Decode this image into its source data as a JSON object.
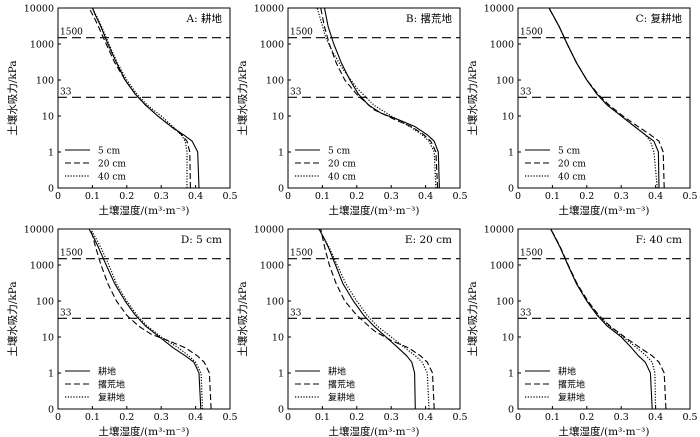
{
  "figure": {
    "xlabel": "土壤湿度/(m³·m⁻³)",
    "ylabel": "土壤水吸力/kPa",
    "ref_lines": [
      {
        "value": 1500,
        "label": "1500"
      },
      {
        "value": 33,
        "label": "33"
      }
    ]
  },
  "chart_data": [
    {
      "type": "line",
      "panel_title": "A: 耕地",
      "xlim": [
        0,
        0.5
      ],
      "xticks": [
        "0",
        "0.1",
        "0.2",
        "0.3",
        "0.4",
        "0.5"
      ],
      "ylim": [
        0,
        10000
      ],
      "yscale": "log",
      "yticks": [
        "0",
        "1",
        "10",
        "100",
        "1000",
        "10000"
      ],
      "legend_position": "lower-left",
      "series": [
        {
          "name": "5 cm",
          "style": "solid",
          "x": [
            0.41,
            0.406,
            0.39,
            0.365,
            0.33,
            0.29,
            0.255,
            0.225,
            0.195,
            0.17,
            0.145,
            0.125,
            0.11,
            0.1,
            0.09
          ],
          "y": [
            0,
            1,
            2,
            3,
            5,
            10,
            20,
            40,
            100,
            300,
            1000,
            3000,
            6000,
            10000,
            10000
          ]
        },
        {
          "name": "20 cm",
          "style": "dashed",
          "x": [
            0.385,
            0.383,
            0.375,
            0.36,
            0.33,
            0.29,
            0.255,
            0.225,
            0.195,
            0.165,
            0.14,
            0.118,
            0.103,
            0.09
          ],
          "y": [
            0,
            1,
            2,
            3,
            5,
            10,
            20,
            40,
            100,
            300,
            1000,
            3000,
            6000,
            10000
          ]
        },
        {
          "name": "40 cm",
          "style": "dotted",
          "x": [
            0.375,
            0.375,
            0.37,
            0.358,
            0.335,
            0.3,
            0.26,
            0.23,
            0.2,
            0.172,
            0.148,
            0.127,
            0.112,
            0.1
          ],
          "y": [
            0,
            1,
            2,
            3,
            5,
            10,
            20,
            40,
            100,
            300,
            1000,
            3000,
            6000,
            10000
          ]
        }
      ]
    },
    {
      "type": "line",
      "panel_title": "B: 撂荒地",
      "xlim": [
        0,
        0.5
      ],
      "xticks": [
        "0",
        "0.1",
        "0.2",
        "0.3",
        "0.4",
        "0.5"
      ],
      "ylim": [
        0,
        10000
      ],
      "yscale": "log",
      "yticks": [
        "0",
        "1",
        "10",
        "100",
        "1000",
        "10000"
      ],
      "legend_position": "lower-left",
      "series": [
        {
          "name": "5 cm",
          "style": "solid",
          "x": [
            0.44,
            0.437,
            0.425,
            0.405,
            0.37,
            0.32,
            0.27,
            0.235,
            0.205,
            0.18,
            0.155,
            0.133,
            0.117,
            0.106
          ],
          "y": [
            0,
            1,
            2,
            3,
            5,
            8,
            12,
            20,
            40,
            100,
            300,
            1000,
            3000,
            10000
          ]
        },
        {
          "name": "20 cm",
          "style": "dashed",
          "x": [
            0.435,
            0.43,
            0.415,
            0.395,
            0.36,
            0.31,
            0.25,
            0.2,
            0.165,
            0.14,
            0.12,
            0.106,
            0.095
          ],
          "y": [
            0,
            1,
            2,
            3,
            5,
            8,
            15,
            40,
            100,
            300,
            1000,
            3000,
            10000
          ]
        },
        {
          "name": "40 cm",
          "style": "dotted",
          "x": [
            0.43,
            0.425,
            0.41,
            0.39,
            0.355,
            0.3,
            0.25,
            0.2,
            0.16,
            0.13,
            0.11,
            0.097,
            0.085
          ],
          "y": [
            0,
            1,
            2,
            3,
            5,
            10,
            20,
            60,
            200,
            600,
            1500,
            4000,
            10000
          ]
        }
      ]
    },
    {
      "type": "line",
      "panel_title": "C: 复耕地",
      "xlim": [
        0,
        0.5
      ],
      "xticks": [
        "0",
        "0.1",
        "0.2",
        "0.3",
        "0.4",
        "0.5"
      ],
      "ylim": [
        0,
        10000
      ],
      "yscale": "log",
      "yticks": [
        "0",
        "1",
        "10",
        "100",
        "1000",
        "10000"
      ],
      "legend_position": "lower-left",
      "series": [
        {
          "name": "5 cm",
          "style": "solid",
          "x": [
            0.41,
            0.408,
            0.395,
            0.37,
            0.34,
            0.3,
            0.26,
            0.23,
            0.2,
            0.17,
            0.143,
            0.12,
            0.103,
            0.09
          ],
          "y": [
            0,
            1,
            2,
            3,
            5,
            10,
            20,
            40,
            100,
            300,
            1000,
            3000,
            6000,
            10000
          ]
        },
        {
          "name": "20 cm",
          "style": "dashed",
          "x": [
            0.425,
            0.422,
            0.41,
            0.385,
            0.35,
            0.305,
            0.265,
            0.233,
            0.2,
            0.17,
            0.143,
            0.12,
            0.103,
            0.09
          ],
          "y": [
            0,
            1,
            2,
            3,
            5,
            10,
            20,
            40,
            100,
            300,
            1000,
            3000,
            6000,
            10000
          ]
        },
        {
          "name": "40 cm",
          "style": "dotted",
          "x": [
            0.405,
            0.395,
            0.385,
            0.37,
            0.34,
            0.3,
            0.26,
            0.23,
            0.2,
            0.17,
            0.143,
            0.12,
            0.103,
            0.09
          ],
          "y": [
            0,
            1,
            2,
            3,
            5,
            10,
            20,
            40,
            100,
            300,
            1000,
            3000,
            6000,
            10000
          ]
        }
      ]
    },
    {
      "type": "line",
      "panel_title": "D: 5 cm",
      "xlim": [
        0,
        0.5
      ],
      "xticks": [
        "0",
        "0.1",
        "0.2",
        "0.3",
        "0.4",
        "0.5"
      ],
      "ylim": [
        0,
        10000
      ],
      "yscale": "log",
      "yticks": [
        "0",
        "1",
        "10",
        "100",
        "1000",
        "10000"
      ],
      "legend_position": "lower-left",
      "series": [
        {
          "name": "耕地",
          "style": "solid",
          "x": [
            0.415,
            0.41,
            0.395,
            0.37,
            0.335,
            0.295,
            0.255,
            0.225,
            0.195,
            0.165,
            0.14,
            0.118,
            0.103,
            0.09
          ],
          "y": [
            0,
            1,
            2,
            3,
            5,
            10,
            20,
            40,
            100,
            300,
            1000,
            3000,
            6000,
            10000
          ]
        },
        {
          "name": "撂荒地",
          "style": "dashed",
          "x": [
            0.445,
            0.44,
            0.425,
            0.405,
            0.37,
            0.32,
            0.27,
            0.235,
            0.2,
            0.17,
            0.145,
            0.125,
            0.11,
            0.095
          ],
          "y": [
            0,
            1,
            2,
            3,
            5,
            8,
            12,
            20,
            40,
            100,
            300,
            1000,
            3000,
            10000
          ]
        },
        {
          "name": "复耕地",
          "style": "dotted",
          "x": [
            0.42,
            0.416,
            0.4,
            0.38,
            0.35,
            0.3,
            0.26,
            0.23,
            0.2,
            0.17,
            0.148,
            0.125,
            0.108,
            0.095
          ],
          "y": [
            0,
            1,
            2,
            3,
            5,
            10,
            20,
            40,
            100,
            300,
            1000,
            3000,
            6000,
            10000
          ]
        }
      ]
    },
    {
      "type": "line",
      "panel_title": "E: 20 cm",
      "xlim": [
        0,
        0.5
      ],
      "xticks": [
        "0",
        "0.1",
        "0.2",
        "0.3",
        "0.4",
        "0.5"
      ],
      "ylim": [
        0,
        10000
      ],
      "yscale": "log",
      "yticks": [
        "0",
        "1",
        "10",
        "100",
        "1000",
        "10000"
      ],
      "legend_position": "lower-left",
      "series": [
        {
          "name": "耕地",
          "style": "solid",
          "x": [
            0.37,
            0.368,
            0.36,
            0.345,
            0.32,
            0.285,
            0.25,
            0.22,
            0.19,
            0.16,
            0.138,
            0.118,
            0.103,
            0.09
          ],
          "y": [
            0,
            1,
            2,
            3,
            5,
            10,
            20,
            40,
            100,
            300,
            1000,
            3000,
            6000,
            10000
          ]
        },
        {
          "name": "撂荒地",
          "style": "dashed",
          "x": [
            0.425,
            0.42,
            0.405,
            0.385,
            0.35,
            0.3,
            0.25,
            0.2,
            0.165,
            0.14,
            0.12,
            0.107,
            0.095
          ],
          "y": [
            0,
            1,
            2,
            3,
            5,
            8,
            15,
            40,
            100,
            300,
            1000,
            3000,
            10000
          ]
        },
        {
          "name": "复耕地",
          "style": "dotted",
          "x": [
            0.41,
            0.405,
            0.39,
            0.37,
            0.34,
            0.3,
            0.26,
            0.23,
            0.2,
            0.168,
            0.143,
            0.12,
            0.103,
            0.09
          ],
          "y": [
            0,
            1,
            2,
            3,
            5,
            10,
            20,
            40,
            100,
            300,
            1000,
            3000,
            6000,
            10000
          ]
        }
      ]
    },
    {
      "type": "line",
      "panel_title": "F: 40 cm",
      "xlim": [
        0,
        0.5
      ],
      "xticks": [
        "0",
        "0.1",
        "0.2",
        "0.3",
        "0.4",
        "0.5"
      ],
      "ylim": [
        0,
        10000
      ],
      "yscale": "log",
      "yticks": [
        "0",
        "1",
        "10",
        "100",
        "1000",
        "10000"
      ],
      "legend_position": "lower-left",
      "series": [
        {
          "name": "耕地",
          "style": "solid",
          "x": [
            0.39,
            0.385,
            0.37,
            0.35,
            0.33,
            0.3,
            0.26,
            0.23,
            0.2,
            0.17,
            0.145,
            0.123,
            0.107,
            0.095
          ],
          "y": [
            0,
            1,
            2,
            3,
            5,
            10,
            20,
            40,
            100,
            300,
            1000,
            3000,
            6000,
            10000
          ]
        },
        {
          "name": "撂荒地",
          "style": "dashed",
          "x": [
            0.43,
            0.425,
            0.41,
            0.39,
            0.355,
            0.31,
            0.268,
            0.235,
            0.203,
            0.172,
            0.146,
            0.124,
            0.108,
            0.095
          ],
          "y": [
            0,
            1,
            2,
            3,
            5,
            10,
            20,
            40,
            100,
            300,
            1000,
            3000,
            6000,
            10000
          ]
        },
        {
          "name": "复耕地",
          "style": "dotted",
          "x": [
            0.4,
            0.398,
            0.39,
            0.373,
            0.345,
            0.305,
            0.265,
            0.232,
            0.2,
            0.17,
            0.145,
            0.123,
            0.107,
            0.095
          ],
          "y": [
            0,
            1,
            2,
            3,
            5,
            10,
            20,
            40,
            100,
            300,
            1000,
            3000,
            6000,
            10000
          ]
        }
      ]
    }
  ]
}
